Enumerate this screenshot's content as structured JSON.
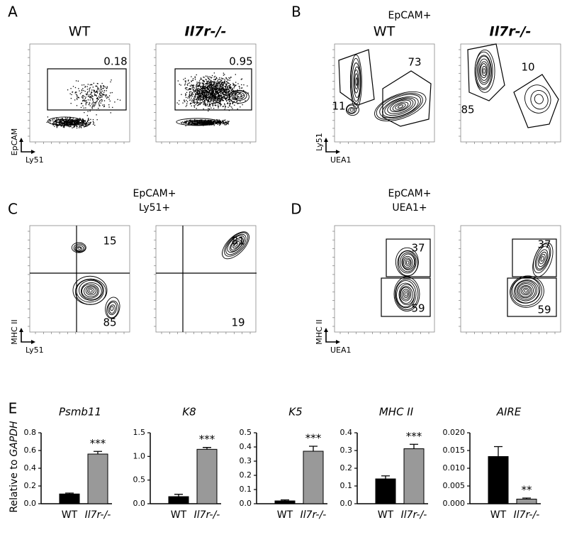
{
  "panels": [
    {
      "label": "A",
      "headers": [
        "WT",
        "Il7r-/-"
      ],
      "y_axis": "EpCAM",
      "x_axis": "Ly51",
      "gates": [
        0.18,
        0.95
      ]
    },
    {
      "label": "B",
      "title": [
        "EpCAM+"
      ],
      "headers": [
        "WT",
        "Il7r-/-"
      ],
      "y_axis": "Ly51",
      "x_axis": "UEA1",
      "gates": [
        11,
        73,
        10,
        85
      ]
    },
    {
      "label": "C",
      "title": [
        "EpCAM+",
        "Ly51+"
      ],
      "y_axis": "MHC II",
      "x_axis": "Ly51",
      "gates": [
        15,
        85,
        81,
        19
      ]
    },
    {
      "label": "D",
      "title": [
        "EpCAM+",
        "UEA1+"
      ],
      "y_axis": "MHC II",
      "x_axis": "UEA1",
      "gates": [
        37,
        59,
        37,
        59
      ]
    }
  ],
  "panel_e": {
    "label": "E",
    "y_label": "Relative to",
    "y_label_gene": "GAPDH"
  },
  "chart_data": [
    {
      "type": "bar",
      "title": "Psmb11",
      "categories": [
        "WT",
        "Il7r-/-"
      ],
      "values": [
        0.11,
        0.56
      ],
      "errors": [
        0.01,
        0.03
      ],
      "colors": [
        "#000000",
        "#999999"
      ],
      "annotation": "***",
      "ylim": [
        0,
        0.8
      ],
      "yticks": [
        {
          "value": 0,
          "label": "0.0"
        },
        0.2,
        0.4,
        0.6,
        0.8
      ]
    },
    {
      "type": "bar",
      "title": "K8",
      "categories": [
        "WT",
        "Il7r-/-"
      ],
      "values": [
        0.15,
        1.15
      ],
      "errors": [
        0.05,
        0.04
      ],
      "colors": [
        "#000000",
        "#999999"
      ],
      "annotation": "***",
      "ylim": [
        0,
        1.5
      ],
      "yticks": [
        {
          "value": 0,
          "label": "0.0"
        },
        0.5,
        {
          "value": 1,
          "label": "1.0"
        },
        1.5
      ]
    },
    {
      "type": "bar",
      "title": "K5",
      "categories": [
        "WT",
        "Il7r-/-"
      ],
      "values": [
        0.02,
        0.37
      ],
      "errors": [
        0.007,
        0.035
      ],
      "colors": [
        "#000000",
        "#999999"
      ],
      "annotation": "***",
      "ylim": [
        0,
        0.5
      ],
      "yticks": [
        {
          "value": 0,
          "label": "0.0"
        },
        0.1,
        0.2,
        0.3,
        0.4,
        0.5
      ]
    },
    {
      "type": "bar",
      "title": "MHC II",
      "categories": [
        "WT",
        "Il7r-/-"
      ],
      "values": [
        0.14,
        0.31
      ],
      "errors": [
        0.017,
        0.025
      ],
      "colors": [
        "#000000",
        "#999999"
      ],
      "annotation": "***",
      "ylim": [
        0,
        0.4
      ],
      "yticks": [
        {
          "value": 0,
          "label": "0.0"
        },
        0.1,
        0.2,
        0.3,
        0.4
      ]
    },
    {
      "type": "bar",
      "title": "AIRE",
      "categories": [
        "WT",
        "Il7r-/-"
      ],
      "values": [
        0.0133,
        0.0013
      ],
      "errors": [
        0.0028,
        0.0003
      ],
      "colors": [
        "#000000",
        "#999999"
      ],
      "annotation": "**",
      "ylim": [
        0,
        0.02
      ],
      "yticks": [
        {
          "value": 0,
          "label": "0.000"
        },
        {
          "value": 0.005,
          "label": "0.005"
        },
        {
          "value": 0.01,
          "label": "0.010"
        },
        {
          "value": 0.015,
          "label": "0.015"
        },
        {
          "value": 0.02,
          "label": "0.020"
        }
      ]
    }
  ]
}
